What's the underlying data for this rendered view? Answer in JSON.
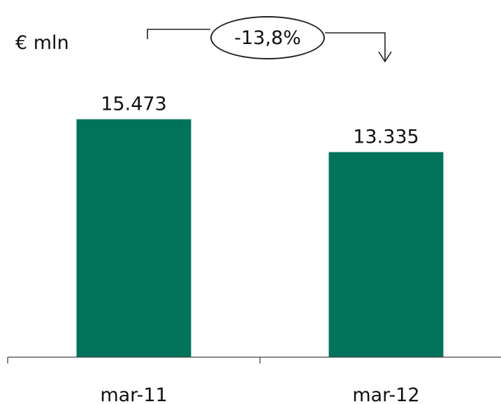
{
  "chart_data": {
    "type": "bar",
    "unit": "€ mln",
    "categories": [
      "mar-11",
      "mar-12"
    ],
    "values": [
      15473,
      13335
    ],
    "value_labels": [
      "15.473",
      "13.335"
    ],
    "annotation": "-13,8%",
    "ylim": [
      0,
      17000
    ],
    "grid": false,
    "legend": "none",
    "bar_color": "#00735a"
  }
}
